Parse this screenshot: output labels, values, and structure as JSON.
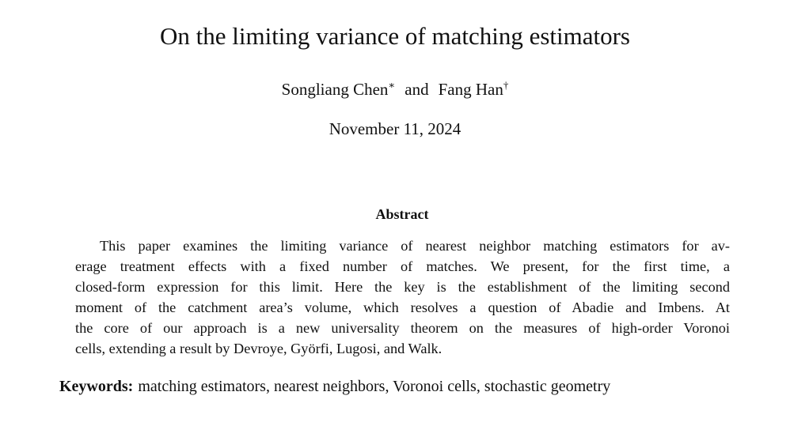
{
  "title": "On the limiting variance of matching estimators",
  "authors": [
    {
      "name": "Songliang Chen",
      "mark": "∗"
    },
    {
      "name": "Fang Han",
      "mark": "†"
    }
  ],
  "author_separator": "and",
  "date": "November 11, 2024",
  "abstract": {
    "heading": "Abstract",
    "lines": [
      "This paper examines the limiting variance of nearest neighbor matching estimators for av-",
      "erage treatment effects with a fixed number of matches.  We present, for the first time, a",
      "closed-form expression for this limit.  Here the key is the establishment of the limiting second",
      "moment of the catchment area’s volume, which resolves a question of Abadie and Imbens.  At",
      "the core of our approach is a new universality theorem on the measures of high-order Voronoi",
      "cells, extending a result by Devroye, Györfi, Lugosi, and Walk."
    ]
  },
  "keywords": {
    "label": "Keywords:",
    "text": "matching estimators, nearest neighbors, Voronoi cells, stochastic geometry"
  }
}
